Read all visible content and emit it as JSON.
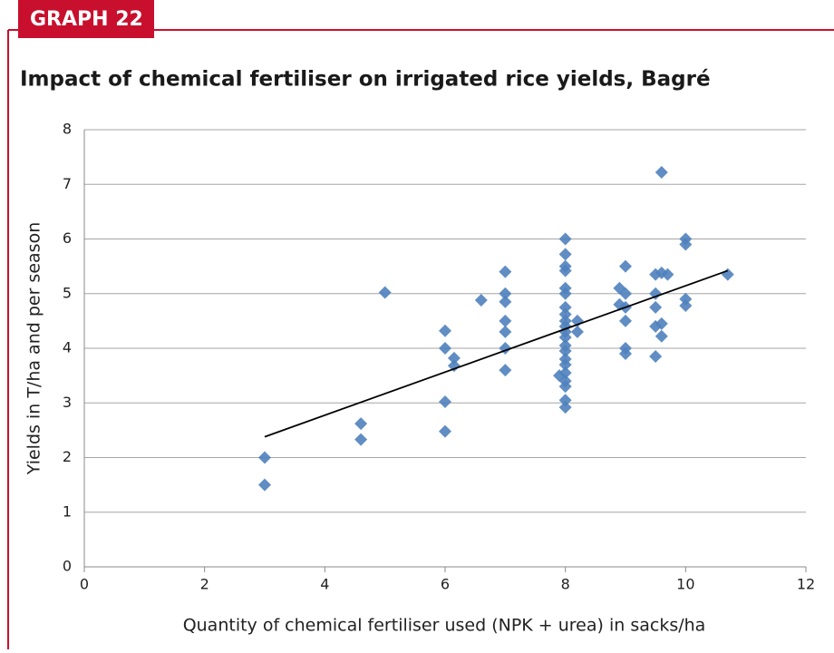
{
  "chart_data": {
    "type": "scatter",
    "badge": "GRAPH 22",
    "title": "Impact of chemical fertiliser on irrigated rice yields, Bagré",
    "x_label": "Quantity of chemical fertiliser used (NPK + urea) in sacks/ha",
    "y_label": "Yields in T/ha and per season",
    "xlim": [
      0,
      12
    ],
    "xticks": [
      0,
      2,
      4,
      6,
      8,
      10,
      12
    ],
    "ylim": [
      0,
      8
    ],
    "yticks": [
      0,
      1,
      2,
      3,
      4,
      5,
      6,
      7,
      8
    ],
    "grid": true,
    "series": [
      {
        "color": "#4f81bd",
        "x": [
          3,
          3,
          4.6,
          4.6,
          5,
          6,
          6,
          6,
          6,
          6.15,
          6.15,
          6.6,
          7,
          7,
          7,
          7,
          7,
          7,
          7,
          8,
          8,
          8,
          8,
          8,
          8,
          8,
          8,
          8,
          8,
          8,
          8,
          8,
          8,
          8,
          8,
          8,
          8,
          8,
          8,
          8,
          7.9,
          8.2,
          8.2,
          8.9,
          8.9,
          9,
          9,
          9,
          9,
          9,
          9,
          9.5,
          9.5,
          9.5,
          9.5,
          9.5,
          9.6,
          9.6,
          9.6,
          9.7,
          9.6,
          10,
          10,
          10,
          10,
          10.7
        ],
        "values": [
          2.0,
          1.5,
          2.62,
          2.33,
          5.02,
          4.32,
          4.0,
          3.02,
          2.48,
          3.82,
          3.68,
          4.88,
          5.4,
          5.0,
          4.85,
          4.5,
          4.3,
          4.0,
          3.6,
          6.0,
          5.72,
          5.5,
          5.42,
          5.1,
          5.0,
          4.75,
          4.62,
          4.5,
          4.4,
          4.3,
          4.2,
          4.05,
          3.95,
          3.8,
          3.7,
          3.55,
          3.4,
          3.3,
          3.05,
          2.92,
          3.5,
          4.5,
          4.3,
          5.1,
          4.8,
          5.5,
          5.0,
          4.75,
          4.5,
          4.0,
          3.9,
          5.35,
          5.0,
          4.75,
          4.4,
          3.85,
          4.45,
          4.22,
          5.38,
          5.35,
          7.22,
          6.0,
          5.9,
          4.9,
          4.78,
          5.35
        ]
      }
    ],
    "trendline": {
      "color": "#000000",
      "x": [
        3,
        10.7
      ],
      "values": [
        2.38,
        5.42
      ]
    }
  }
}
